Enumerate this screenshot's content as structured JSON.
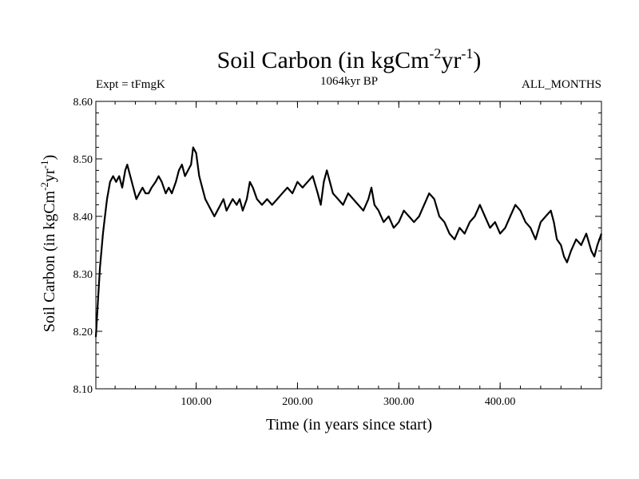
{
  "chart_data": {
    "type": "line",
    "title_main": "Soil Carbon (in kgCm",
    "title_sup1": "-2",
    "title_mid": "yr",
    "title_sup2": "-1",
    "title_end": ")",
    "left_label": "Expt = tFmgK",
    "center_label": "1064kyr BP",
    "right_label": "ALL_MONTHS",
    "xlabel": "Time (in years since start)",
    "ylabel_main": "Soil Carbon (in kgCm",
    "ylabel_sup1": "-2",
    "ylabel_mid": "yr",
    "ylabel_sup2": "-1",
    "ylabel_end": ")",
    "xlim": [
      1,
      500
    ],
    "ylim": [
      8.1,
      8.6
    ],
    "x_ticks": [
      {
        "value": 100,
        "label": "100.00"
      },
      {
        "value": 200,
        "label": "200.00"
      },
      {
        "value": 300,
        "label": "300.00"
      },
      {
        "value": 400,
        "label": "400.00"
      }
    ],
    "y_ticks": [
      {
        "value": 8.1,
        "label": "8.10"
      },
      {
        "value": 8.2,
        "label": "8.20"
      },
      {
        "value": 8.3,
        "label": "8.30"
      },
      {
        "value": 8.4,
        "label": "8.40"
      },
      {
        "value": 8.5,
        "label": "8.50"
      },
      {
        "value": 8.6,
        "label": "8.60"
      }
    ],
    "series": [
      {
        "name": "Soil Carbon",
        "color": "#000000",
        "x": [
          1,
          3,
          5,
          8,
          10,
          12,
          15,
          18,
          21,
          24,
          27,
          30,
          32,
          35,
          38,
          41,
          44,
          47,
          50,
          53,
          56,
          60,
          63,
          66,
          70,
          73,
          76,
          80,
          83,
          86,
          89,
          92,
          95,
          97,
          100,
          103,
          106,
          109,
          112,
          115,
          118,
          121,
          124,
          127,
          130,
          133,
          136,
          140,
          143,
          146,
          150,
          153,
          156,
          160,
          165,
          170,
          175,
          180,
          185,
          190,
          195,
          200,
          205,
          210,
          215,
          220,
          223,
          226,
          229,
          232,
          235,
          240,
          245,
          250,
          255,
          260,
          265,
          270,
          273,
          276,
          280,
          285,
          290,
          295,
          300,
          305,
          310,
          315,
          320,
          325,
          330,
          335,
          340,
          345,
          350,
          355,
          360,
          365,
          370,
          375,
          380,
          385,
          390,
          395,
          400,
          405,
          410,
          415,
          420,
          425,
          430,
          435,
          440,
          445,
          450,
          453,
          456,
          460,
          463,
          466,
          470,
          475,
          480,
          485,
          490,
          493,
          496,
          500
        ],
        "y": [
          8.19,
          8.25,
          8.31,
          8.37,
          8.4,
          8.43,
          8.46,
          8.47,
          8.46,
          8.47,
          8.45,
          8.48,
          8.49,
          8.47,
          8.45,
          8.43,
          8.44,
          8.45,
          8.44,
          8.44,
          8.45,
          8.46,
          8.47,
          8.46,
          8.44,
          8.45,
          8.44,
          8.46,
          8.48,
          8.49,
          8.47,
          8.48,
          8.49,
          8.52,
          8.51,
          8.47,
          8.45,
          8.43,
          8.42,
          8.41,
          8.4,
          8.41,
          8.42,
          8.43,
          8.41,
          8.42,
          8.43,
          8.42,
          8.43,
          8.41,
          8.43,
          8.46,
          8.45,
          8.43,
          8.42,
          8.43,
          8.42,
          8.43,
          8.44,
          8.45,
          8.44,
          8.46,
          8.45,
          8.46,
          8.47,
          8.44,
          8.42,
          8.46,
          8.48,
          8.46,
          8.44,
          8.43,
          8.42,
          8.44,
          8.43,
          8.42,
          8.41,
          8.43,
          8.45,
          8.42,
          8.41,
          8.39,
          8.4,
          8.38,
          8.39,
          8.41,
          8.4,
          8.39,
          8.4,
          8.42,
          8.44,
          8.43,
          8.4,
          8.39,
          8.37,
          8.36,
          8.38,
          8.37,
          8.39,
          8.4,
          8.42,
          8.4,
          8.38,
          8.39,
          8.37,
          8.38,
          8.4,
          8.42,
          8.41,
          8.39,
          8.38,
          8.36,
          8.39,
          8.4,
          8.41,
          8.39,
          8.36,
          8.35,
          8.33,
          8.32,
          8.34,
          8.36,
          8.35,
          8.37,
          8.34,
          8.33,
          8.35,
          8.37
        ]
      }
    ]
  }
}
